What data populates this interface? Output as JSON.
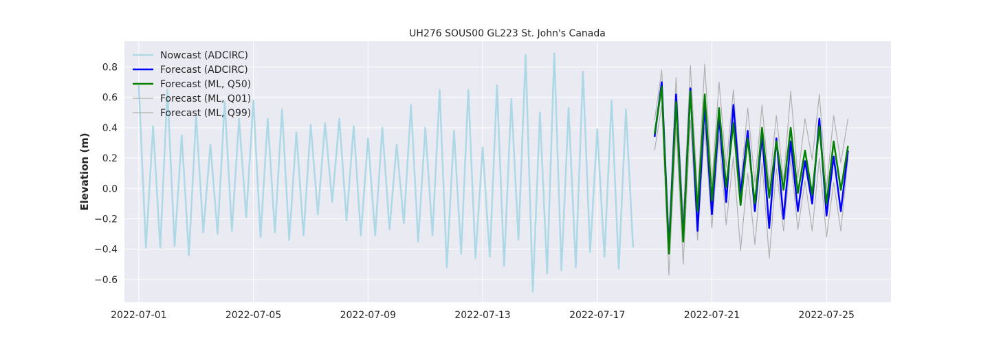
{
  "chart_data": {
    "type": "line",
    "title": "UH276 SOUS00 GL223 St. John's Canada",
    "xlabel": "",
    "ylabel": "Elevation (m)",
    "xlim": [
      "2022-06-30T12:00",
      "2022-07-27T06:00"
    ],
    "ylim": [
      -0.75,
      0.97
    ],
    "xticks": [
      "2022-07-01",
      "2022-07-05",
      "2022-07-09",
      "2022-07-13",
      "2022-07-17",
      "2022-07-21",
      "2022-07-25"
    ],
    "yticks": [
      -0.6,
      -0.4,
      -0.2,
      0.0,
      0.2,
      0.4,
      0.6,
      0.8
    ],
    "ytick_labels": [
      "−0.6",
      "−0.4",
      "−0.2",
      "0.0",
      "0.2",
      "0.4",
      "0.6",
      "0.8"
    ],
    "grid": true,
    "legend_position": "upper left",
    "colors": {
      "background": "#eaeaf2",
      "grid": "#ffffff",
      "nowcast": "#add8e6",
      "forecast_adcirc": "#0000ff",
      "forecast_ml_q50": "#008000",
      "forecast_ml_quantile": "#b0b0b0"
    },
    "series": [
      {
        "name": "Nowcast (ADCIRC)",
        "color": "#add8e6",
        "width": 2.5,
        "start": "2022-07-01T00:00",
        "step_hours": 6,
        "values": [
          0.68,
          -0.39,
          0.41,
          -0.39,
          0.65,
          -0.38,
          0.35,
          -0.44,
          0.48,
          -0.29,
          0.29,
          -0.3,
          0.57,
          -0.28,
          0.46,
          -0.19,
          0.58,
          -0.32,
          0.46,
          -0.29,
          0.52,
          -0.34,
          0.37,
          -0.31,
          0.42,
          -0.17,
          0.43,
          -0.09,
          0.46,
          -0.21,
          0.41,
          -0.31,
          0.33,
          -0.31,
          0.4,
          -0.27,
          0.29,
          -0.23,
          0.55,
          -0.35,
          0.4,
          -0.31,
          0.65,
          -0.52,
          0.38,
          -0.43,
          0.65,
          -0.46,
          0.27,
          -0.45,
          0.68,
          -0.51,
          0.59,
          -0.34,
          0.88,
          -0.68,
          0.5,
          -0.56,
          0.89,
          -0.54,
          0.53,
          -0.52,
          0.77,
          -0.42,
          0.39,
          -0.45,
          0.58,
          -0.53,
          0.52,
          -0.39
        ]
      },
      {
        "name": "Forecast (ADCIRC)",
        "color": "#0000ff",
        "width": 2.5,
        "start": "2022-07-19T00:00",
        "step_hours": 6,
        "values": [
          0.34,
          0.7,
          -0.4,
          0.62,
          -0.33,
          0.66,
          -0.28,
          0.55,
          -0.17,
          0.47,
          -0.09,
          0.55,
          -0.04,
          0.38,
          -0.15,
          0.35,
          -0.26,
          0.33,
          -0.2,
          0.31,
          -0.15,
          0.18,
          -0.1,
          0.46,
          -0.18,
          0.21,
          -0.15,
          0.25
        ]
      },
      {
        "name": "Forecast (ML, Q50)",
        "color": "#008000",
        "width": 2.5,
        "start": "2022-07-19T00:00",
        "step_hours": 6,
        "values": [
          0.36,
          0.67,
          -0.43,
          0.57,
          -0.35,
          0.64,
          -0.15,
          0.62,
          -0.08,
          0.53,
          0.01,
          0.43,
          -0.11,
          0.33,
          -0.1,
          0.4,
          -0.06,
          0.31,
          -0.01,
          0.4,
          -0.03,
          0.25,
          -0.04,
          0.41,
          -0.1,
          0.31,
          -0.01,
          0.28
        ]
      },
      {
        "name": "Forecast (ML, Q01)",
        "color": "#b0b0b0",
        "width": 1.2,
        "start": "2022-07-19T00:00",
        "step_hours": 6,
        "values": [
          0.25,
          0.55,
          -0.57,
          0.4,
          -0.5,
          0.45,
          -0.34,
          0.4,
          -0.26,
          0.35,
          -0.24,
          0.21,
          -0.41,
          0.1,
          -0.37,
          0.17,
          -0.46,
          0.13,
          -0.28,
          0.2,
          -0.27,
          0.05,
          -0.28,
          0.2,
          -0.32,
          0.04,
          -0.28,
          0.2
        ]
      },
      {
        "name": "Forecast (ML, Q99)",
        "color": "#b0b0b0",
        "width": 1.2,
        "start": "2022-07-19T00:00",
        "step_hours": 6,
        "values": [
          0.45,
          0.78,
          -0.3,
          0.73,
          -0.2,
          0.81,
          -0.05,
          0.82,
          0.03,
          0.7,
          0.14,
          0.65,
          0.02,
          0.53,
          0.04,
          0.55,
          0.02,
          0.48,
          0.05,
          0.64,
          0.07,
          0.46,
          0.19,
          0.62,
          0.0,
          0.48,
          0.17,
          0.46
        ]
      }
    ]
  }
}
